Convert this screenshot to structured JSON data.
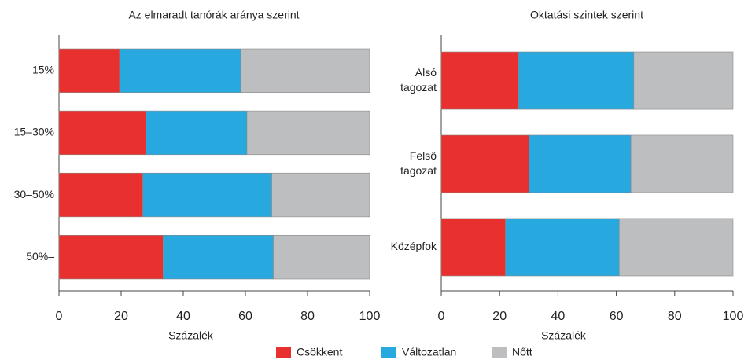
{
  "chart_data": [
    {
      "type": "stacked_bar",
      "title": "Az elmaradt tanórák aránya szerint",
      "x_label": "Százalék",
      "categories": [
        "15%",
        "15–30%",
        "30–50%",
        "50%–"
      ],
      "series": [
        {
          "name": "Csökkent",
          "color": "#e8312f",
          "values": [
            19.5,
            28,
            27,
            33.5
          ]
        },
        {
          "name": "Változatlan",
          "color": "#27a8df",
          "values": [
            39,
            32.5,
            41.5,
            35.5
          ]
        },
        {
          "name": "Nőtt",
          "color": "#bdbec0",
          "values": [
            41.5,
            39.5,
            31.5,
            31
          ]
        }
      ],
      "xlim": [
        0,
        100
      ],
      "xticks": [
        0,
        20,
        40,
        60,
        80,
        100
      ]
    },
    {
      "type": "stacked_bar",
      "title": "Oktatási szintek szerint",
      "x_label": "Százalék",
      "categories": [
        "Alsó tagozat",
        "Felső tagozat",
        "Középfok"
      ],
      "series": [
        {
          "color": "#e8312f",
          "values": [
            26.5,
            30,
            22
          ]
        },
        {
          "color": "#27a8df",
          "values": [
            39.5,
            35,
            39
          ]
        },
        {
          "color": "#bdbec0",
          "values": [
            34,
            35,
            39
          ]
        }
      ],
      "xlim": [
        0,
        100
      ],
      "xticks": [
        0,
        20,
        40,
        60,
        80,
        100
      ]
    }
  ]
}
